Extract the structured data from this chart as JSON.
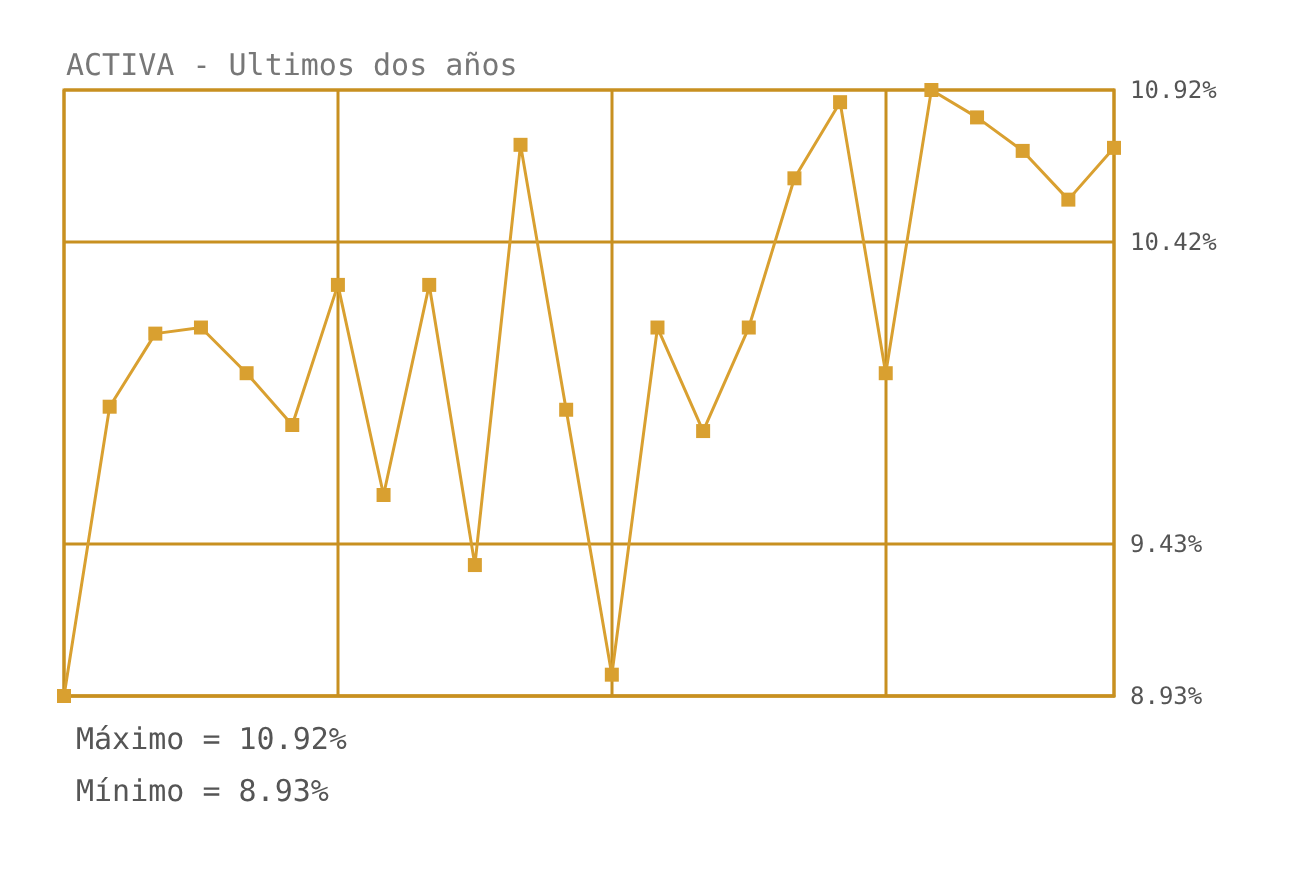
{
  "chart_data": {
    "type": "line",
    "title": "ACTIVA - Ultimos dos años",
    "categories": [
      null,
      null,
      null,
      null,
      null,
      null,
      null,
      null,
      null,
      null,
      null,
      null,
      null,
      null,
      null,
      null,
      null,
      null,
      null,
      null,
      null,
      null,
      null,
      null
    ],
    "series": [
      {
        "color": "#d9a030",
        "values": [
          8.93,
          9.88,
          10.12,
          10.14,
          9.99,
          9.82,
          10.28,
          9.59,
          10.28,
          9.36,
          10.74,
          9.87,
          9.0,
          10.14,
          9.8,
          10.14,
          10.63,
          10.88,
          9.99,
          10.92,
          10.83,
          10.72,
          10.56,
          10.73
        ]
      }
    ],
    "ylim": [
      8.93,
      10.92
    ],
    "yticks": [
      {
        "value": 8.93,
        "label": "8.93%"
      },
      {
        "value": 9.43,
        "label": "9.43%"
      },
      {
        "value": 10.42,
        "label": "10.42%"
      },
      {
        "value": 10.92,
        "label": "10.92%"
      }
    ],
    "grid": true,
    "marker": "square",
    "line_style": "solid",
    "annotations": [
      "Máximo = 10.92%",
      "Mínimo = 8.93%"
    ]
  }
}
